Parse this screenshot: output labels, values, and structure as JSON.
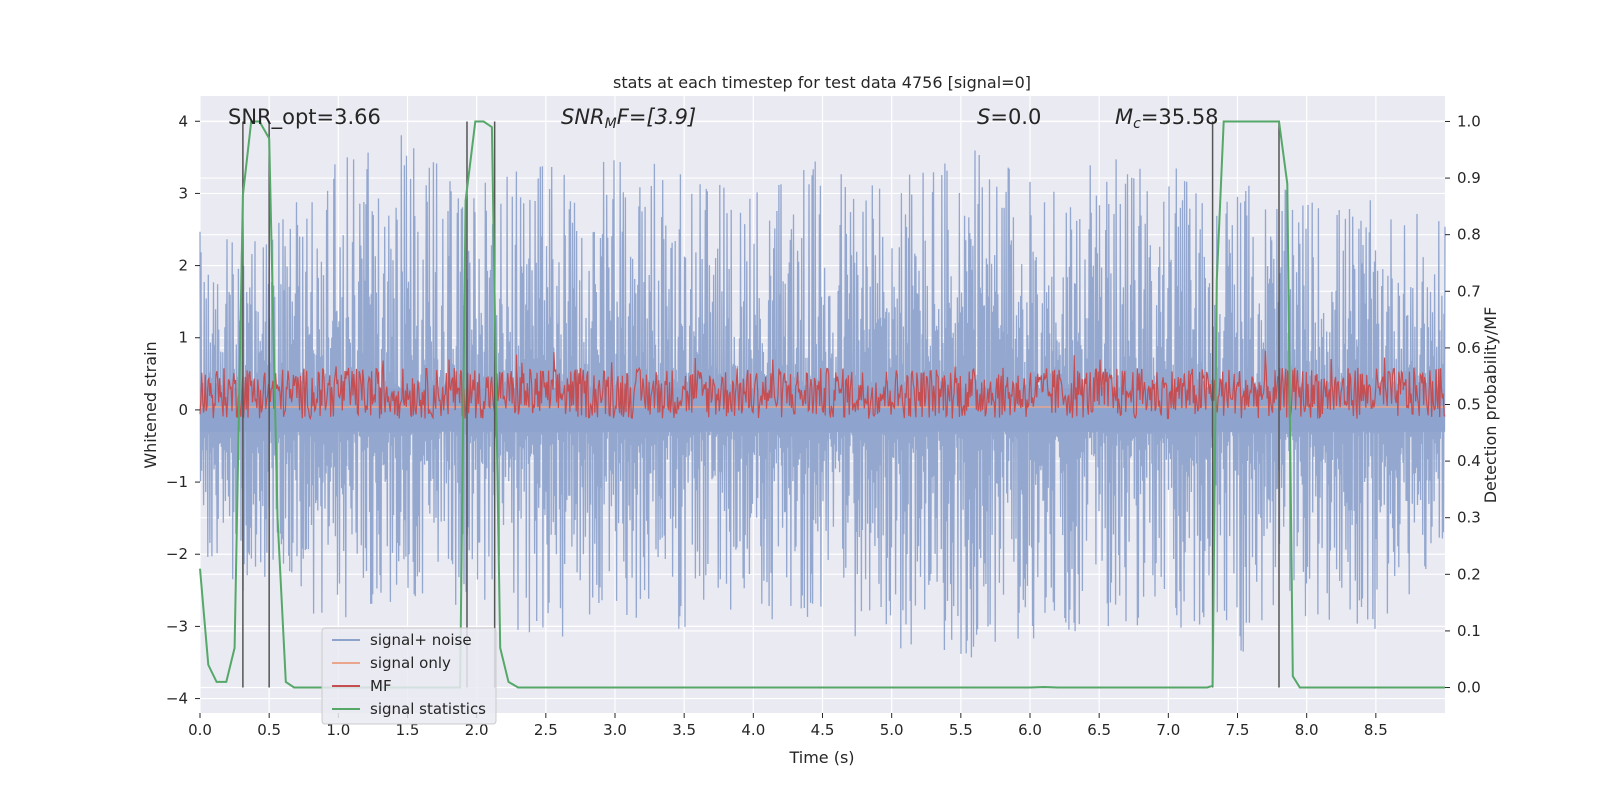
{
  "chart_data": {
    "type": "line",
    "title": "stats at each timestep for test data 4756 [signal=0]",
    "xlabel": "Time (s)",
    "ylabel": "Whitened strain",
    "y2label": "Detection probability/MF",
    "xlim": [
      0.0,
      9.0
    ],
    "ylim": [
      -4.2,
      4.35
    ],
    "y2lim": [
      -0.045,
      1.045
    ],
    "xticks": [
      "0.0",
      "0.5",
      "1.0",
      "1.5",
      "2.0",
      "2.5",
      "3.0",
      "3.5",
      "4.0",
      "4.5",
      "5.0",
      "5.5",
      "6.0",
      "6.5",
      "7.0",
      "7.5",
      "8.0",
      "8.5"
    ],
    "yticks": [
      "4",
      "3",
      "2",
      "1",
      "0",
      "−1",
      "−2",
      "−3",
      "−4"
    ],
    "y2ticks": [
      "1.0",
      "0.9",
      "0.8",
      "0.7",
      "0.6",
      "0.5",
      "0.4",
      "0.3",
      "0.2",
      "0.1",
      "0.0"
    ],
    "grid": true,
    "legend_position": "lower-left",
    "annotations": {
      "snr_opt": "SNR_opt=3.66",
      "snr_mf_name": "SNR",
      "snr_mf_sub": "M",
      "snr_mf_rest": "F=[3.9]",
      "s_name": "S",
      "s_value": "=0.0",
      "mc_name": "M",
      "mc_sub": "c",
      "mc_value": "=35.58"
    },
    "series": [
      {
        "name": "signal+ noise",
        "color": "#8ea3cc",
        "style": "noise",
        "envelope_upper": [
          [
            0.0,
            2.7
          ],
          [
            0.3,
            2.4
          ],
          [
            0.5,
            2.6
          ],
          [
            0.9,
            3.5
          ],
          [
            1.5,
            4.0
          ],
          [
            2.0,
            3.2
          ],
          [
            2.5,
            3.4
          ],
          [
            3.0,
            3.6
          ],
          [
            3.5,
            3.3
          ],
          [
            4.0,
            3.2
          ],
          [
            4.5,
            3.5
          ],
          [
            5.0,
            3.4
          ],
          [
            5.5,
            3.7
          ],
          [
            6.0,
            3.3
          ],
          [
            6.5,
            3.5
          ],
          [
            7.0,
            3.4
          ],
          [
            7.5,
            3.2
          ],
          [
            8.0,
            3.0
          ],
          [
            8.5,
            2.9
          ],
          [
            9.0,
            2.6
          ]
        ],
        "envelope_lower": [
          [
            0.0,
            -2.0
          ],
          [
            0.3,
            -2.6
          ],
          [
            0.5,
            -2.3
          ],
          [
            0.9,
            -3.0
          ],
          [
            1.5,
            -2.7
          ],
          [
            2.0,
            -2.8
          ],
          [
            2.5,
            -3.3
          ],
          [
            3.0,
            -2.9
          ],
          [
            3.5,
            -3.1
          ],
          [
            4.0,
            -2.9
          ],
          [
            4.5,
            -3.0
          ],
          [
            5.0,
            -3.3
          ],
          [
            5.5,
            -3.5
          ],
          [
            6.0,
            -3.2
          ],
          [
            6.5,
            -3.0
          ],
          [
            7.0,
            -3.1
          ],
          [
            7.5,
            -3.4
          ],
          [
            8.0,
            -2.9
          ],
          [
            8.5,
            -3.2
          ],
          [
            9.0,
            -2.0
          ]
        ]
      },
      {
        "name": "signal only",
        "color": "#e9a68c",
        "style": "line",
        "axis": "left",
        "points": [
          [
            0.0,
            0.04
          ],
          [
            9.0,
            0.04
          ]
        ]
      },
      {
        "name": "MF",
        "color": "#c44e52",
        "style": "noise",
        "axis": "right",
        "band": [
          0.495,
          0.555
        ],
        "peak": 0.6
      },
      {
        "name": "signal statistics",
        "color": "#55a868",
        "style": "line",
        "axis": "right",
        "points": [
          [
            0.0,
            0.21
          ],
          [
            0.06,
            0.04
          ],
          [
            0.12,
            0.01
          ],
          [
            0.19,
            0.01
          ],
          [
            0.25,
            0.07
          ],
          [
            0.31,
            0.87
          ],
          [
            0.37,
            1.0
          ],
          [
            0.43,
            1.0
          ],
          [
            0.5,
            0.97
          ],
          [
            0.56,
            0.3
          ],
          [
            0.62,
            0.01
          ],
          [
            0.68,
            0.0
          ],
          [
            1.8,
            0.0
          ],
          [
            1.88,
            0.0
          ],
          [
            1.92,
            0.86
          ],
          [
            1.99,
            1.0
          ],
          [
            2.05,
            1.0
          ],
          [
            2.11,
            0.99
          ],
          [
            2.17,
            0.07
          ],
          [
            2.23,
            0.01
          ],
          [
            2.3,
            0.0
          ],
          [
            2.6,
            0.0
          ],
          [
            3.0,
            0.0
          ],
          [
            6.0,
            0.0
          ],
          [
            6.1,
            0.001
          ],
          [
            6.2,
            0.0
          ],
          [
            7.28,
            0.0
          ],
          [
            7.32,
            0.003
          ],
          [
            7.35,
            0.72
          ],
          [
            7.4,
            1.0
          ],
          [
            7.5,
            1.0
          ],
          [
            7.8,
            1.0
          ],
          [
            7.86,
            0.89
          ],
          [
            7.9,
            0.02
          ],
          [
            7.95,
            0.0
          ],
          [
            9.0,
            0.0
          ]
        ]
      }
    ],
    "vlines": [
      0.31,
      0.5,
      1.93,
      2.13,
      7.32,
      7.8
    ]
  }
}
